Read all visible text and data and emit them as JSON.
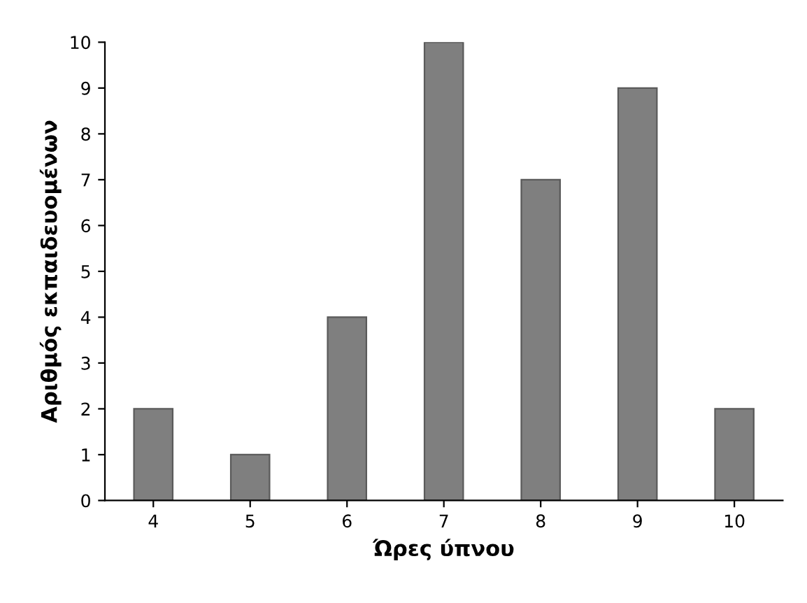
{
  "chart_data": {
    "type": "bar",
    "xlabel": "Ώρες ύπνου",
    "ylabel": "Αριθμός εκπαιδευομένων",
    "categories": [
      "4",
      "5",
      "6",
      "7",
      "8",
      "9",
      "10"
    ],
    "values": [
      2,
      1,
      4,
      10,
      7,
      9,
      2
    ],
    "color": "#7f7f7f",
    "ylim": [
      0,
      10
    ],
    "yticks": [
      0,
      1,
      2,
      3,
      4,
      5,
      6,
      7,
      8,
      9,
      10
    ],
    "grid": false,
    "legend": false
  }
}
